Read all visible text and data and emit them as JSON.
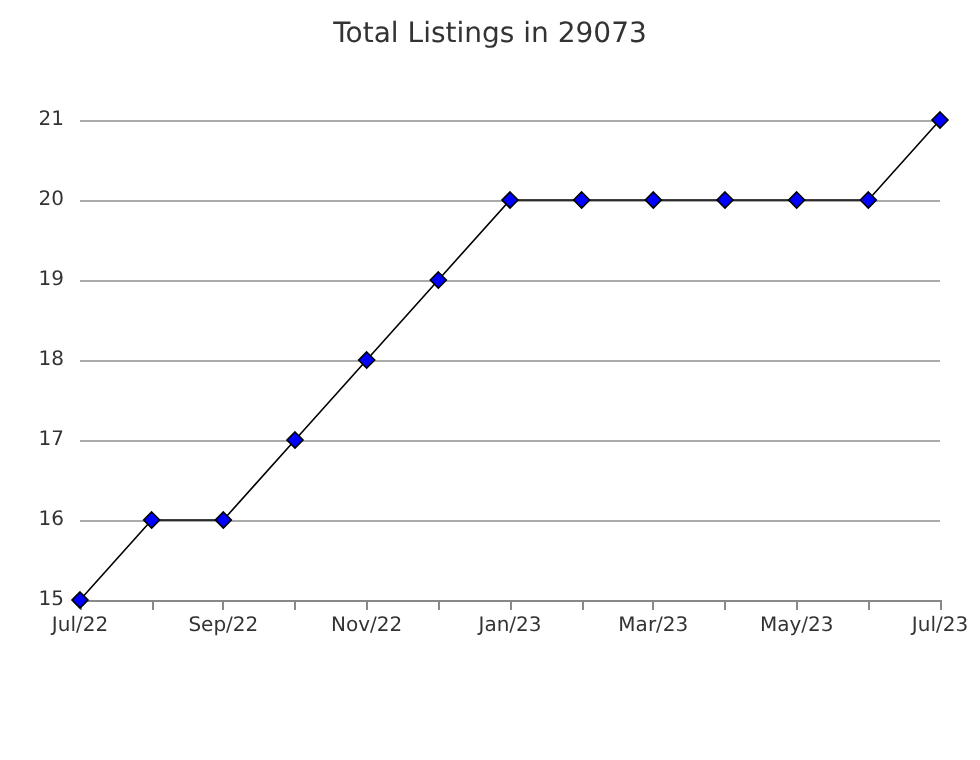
{
  "chart_data": {
    "type": "line",
    "title": "Total Listings in 29073",
    "categories": [
      "Jul/22",
      null,
      "Sep/22",
      null,
      "Nov/22",
      null,
      "Jan/23",
      null,
      "Mar/23",
      null,
      "May/23",
      null,
      "Jul/23"
    ],
    "series": [
      {
        "color": "#0000ff",
        "values": [
          15,
          16,
          16,
          17,
          18,
          19,
          20,
          20,
          20,
          20,
          20,
          20,
          21
        ]
      }
    ],
    "ylim": [
      15,
      21
    ],
    "yticks": [
      15,
      16,
      17,
      18,
      19,
      20,
      21
    ],
    "grid": "y",
    "marker": "diamond",
    "line_style": "solid"
  }
}
